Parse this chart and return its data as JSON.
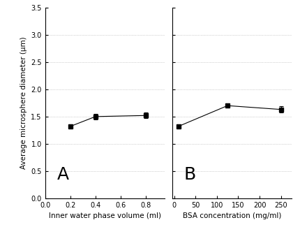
{
  "panel_A": {
    "x": [
      0.2,
      0.4,
      0.8
    ],
    "y": [
      1.32,
      1.5,
      1.52
    ],
    "yerr": [
      0.04,
      0.05,
      0.05
    ],
    "xlabel": "Inner water phase volume (ml)",
    "label": "A",
    "xlim": [
      0.0,
      0.95
    ],
    "xticks": [
      0.0,
      0.2,
      0.4,
      0.6,
      0.8
    ]
  },
  "panel_B": {
    "x": [
      10,
      125,
      250
    ],
    "y": [
      1.32,
      1.7,
      1.63
    ],
    "yerr": [
      0.04,
      0.04,
      0.06
    ],
    "xlabel": "BSA concentration (mg/ml)",
    "label": "B",
    "xlim": [
      -5,
      275
    ],
    "xticks": [
      0,
      50,
      100,
      150,
      200,
      250
    ]
  },
  "ylabel": "Average microsphere diameter (μm)",
  "ylim": [
    0.0,
    3.5
  ],
  "yticks": [
    0.0,
    0.5,
    1.0,
    1.5,
    2.0,
    2.5,
    3.0,
    3.5
  ],
  "grid_color": "#aaaaaa",
  "line_color": "#000000",
  "marker": "s",
  "marker_size": 4,
  "capsize": 2,
  "label_fontsize": 18,
  "tick_fontsize": 7,
  "axis_label_fontsize": 7.5
}
